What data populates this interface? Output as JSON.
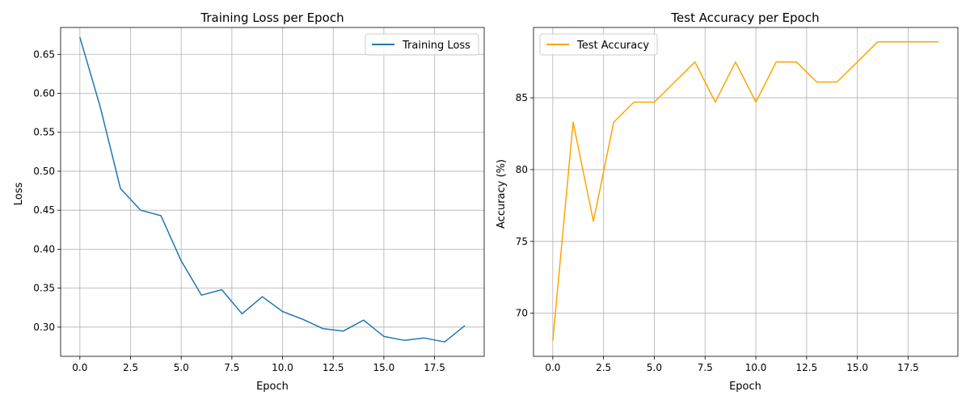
{
  "chart_data": [
    {
      "type": "line",
      "title": "Training Loss per Epoch",
      "xlabel": "Epoch",
      "ylabel": "Loss",
      "xlim": [
        -0.95,
        19.95
      ],
      "ylim": [
        0.2625,
        0.6845
      ],
      "xticks": [
        0,
        2.5,
        5,
        7.5,
        10,
        12.5,
        15,
        17.5
      ],
      "xtick_labels": [
        "0.0",
        "2.5",
        "5.0",
        "7.5",
        "10.0",
        "12.5",
        "15.0",
        "17.5"
      ],
      "yticks": [
        0.3,
        0.35,
        0.4,
        0.45,
        0.5,
        0.55,
        0.6,
        0.65
      ],
      "ytick_labels": [
        "0.30",
        "0.35",
        "0.40",
        "0.45",
        "0.50",
        "0.55",
        "0.60",
        "0.65"
      ],
      "grid": true,
      "legend_position": "top-right",
      "series": [
        {
          "name": "Training Loss",
          "color": "#1f77b4",
          "x": [
            0,
            1,
            2,
            3,
            4,
            5,
            6,
            7,
            8,
            9,
            10,
            11,
            12,
            13,
            14,
            15,
            16,
            17,
            18,
            19
          ],
          "values": [
            0.672,
            0.583,
            0.478,
            0.45,
            0.443,
            0.385,
            0.341,
            0.348,
            0.317,
            0.339,
            0.32,
            0.31,
            0.298,
            0.295,
            0.309,
            0.288,
            0.283,
            0.286,
            0.281,
            0.302
          ]
        }
      ]
    },
    {
      "type": "line",
      "title": "Test Accuracy per Epoch",
      "xlabel": "Epoch",
      "ylabel": "Accuracy (%)",
      "xlim": [
        -0.95,
        19.95
      ],
      "ylim": [
        67.0,
        89.9
      ],
      "xticks": [
        0,
        2.5,
        5,
        7.5,
        10,
        12.5,
        15,
        17.5
      ],
      "xtick_labels": [
        "0.0",
        "2.5",
        "5.0",
        "7.5",
        "10.0",
        "12.5",
        "15.0",
        "17.5"
      ],
      "yticks": [
        70,
        75,
        80,
        85
      ],
      "ytick_labels": [
        "70",
        "75",
        "80",
        "85"
      ],
      "grid": true,
      "legend_position": "top-left",
      "series": [
        {
          "name": "Test Accuracy",
          "color": "#ffa500",
          "x": [
            0,
            1,
            2,
            3,
            4,
            5,
            6,
            7,
            8,
            9,
            10,
            11,
            12,
            13,
            14,
            15,
            16,
            17,
            18,
            19
          ],
          "values": [
            68.1,
            83.3,
            76.4,
            83.3,
            84.7,
            84.7,
            86.1,
            87.5,
            84.7,
            87.5,
            84.7,
            87.5,
            87.5,
            86.1,
            86.1,
            87.5,
            88.9,
            88.9,
            88.9,
            88.9
          ]
        }
      ]
    }
  ]
}
